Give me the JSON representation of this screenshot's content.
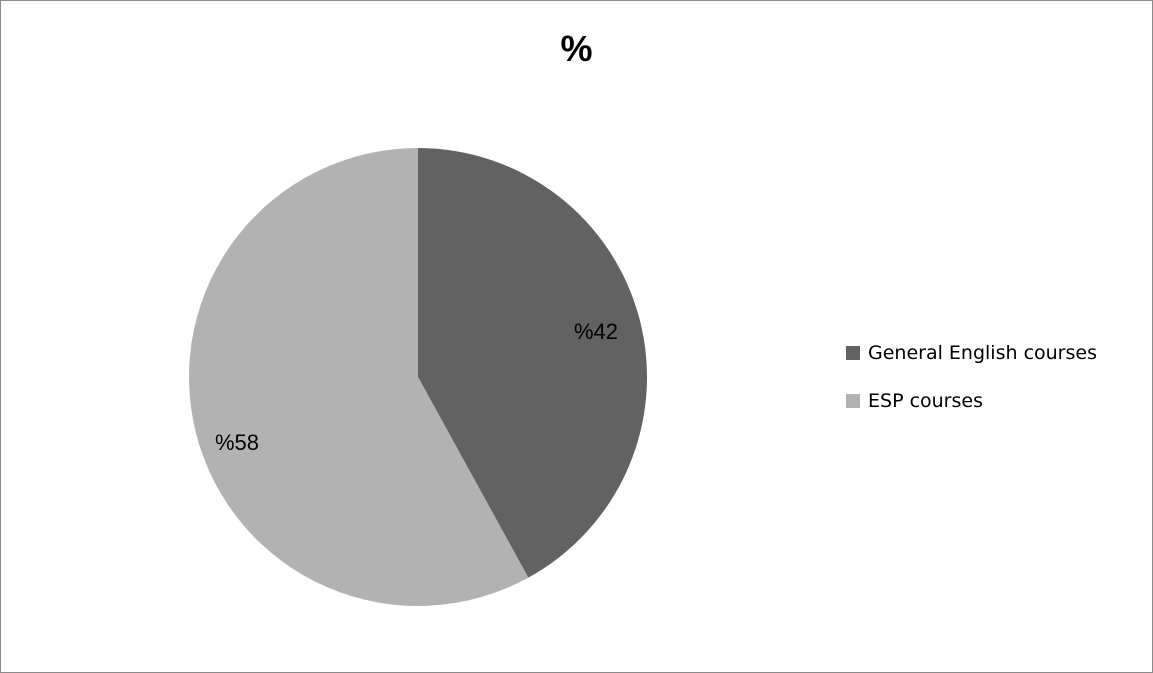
{
  "chart_data": {
    "type": "pie",
    "title": "%",
    "categories": [
      "General English courses",
      "ESP courses"
    ],
    "values": [
      42,
      58
    ],
    "data_labels": [
      "%42",
      "%58"
    ],
    "colors": [
      "#626262",
      "#b2b2b2"
    ],
    "legend_position": "right"
  }
}
